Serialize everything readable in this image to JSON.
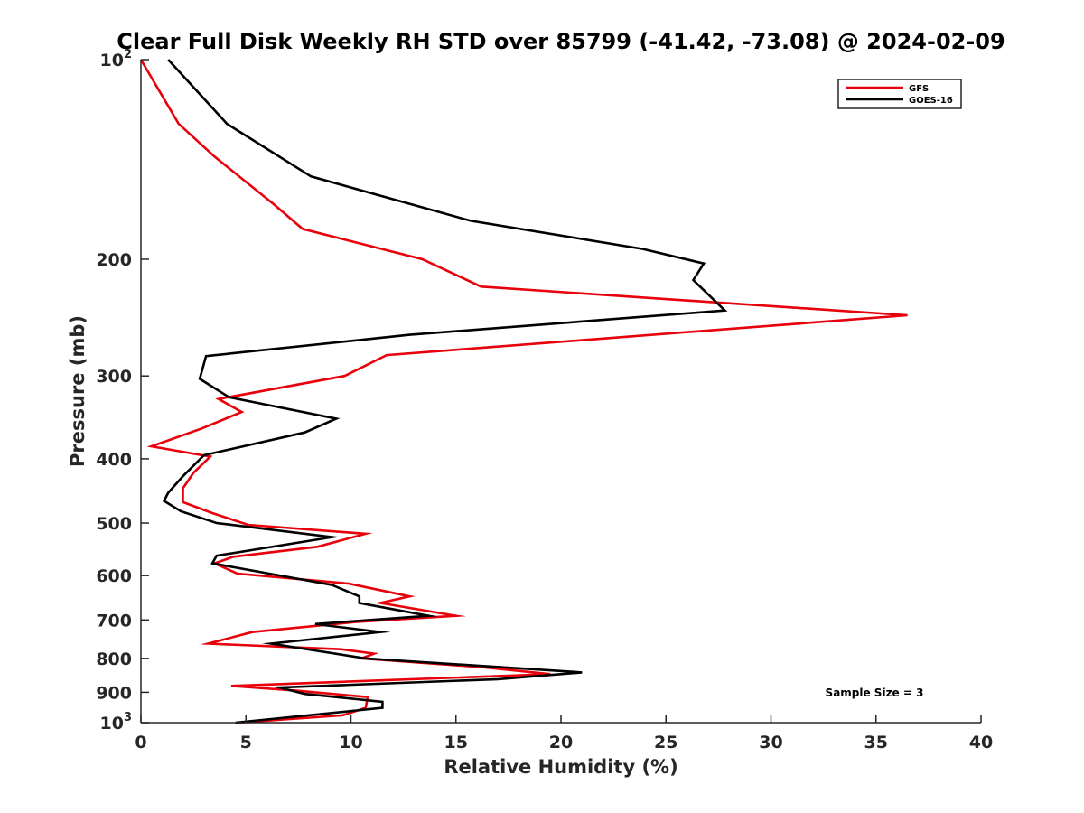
{
  "chart_data": {
    "type": "line",
    "title": "Clear Full Disk Weekly RH STD over 85799 (-41.42, -73.08) @ 2024-02-09",
    "xlabel": "Relative Humidity (%)",
    "ylabel": "Pressure (mb)",
    "xlim": [
      0,
      40
    ],
    "ylim": [
      100,
      1000
    ],
    "y_scale": "log",
    "y_reversed": true,
    "grid": false,
    "x_ticks": [
      0,
      5,
      10,
      15,
      20,
      25,
      30,
      35,
      40
    ],
    "x_tick_labels": [
      "0",
      "5",
      "10",
      "15",
      "20",
      "25",
      "30",
      "35",
      "40"
    ],
    "y_ticks": [
      100,
      200,
      300,
      400,
      500,
      600,
      700,
      800,
      900,
      1000
    ],
    "y_tick_labels": [
      {
        "base": "10",
        "sup": "2"
      },
      {
        "base": "200",
        "sup": ""
      },
      {
        "base": "300",
        "sup": ""
      },
      {
        "base": "400",
        "sup": ""
      },
      {
        "base": "500",
        "sup": ""
      },
      {
        "base": "600",
        "sup": ""
      },
      {
        "base": "700",
        "sup": ""
      },
      {
        "base": "800",
        "sup": ""
      },
      {
        "base": "900",
        "sup": ""
      },
      {
        "base": "10",
        "sup": "3"
      }
    ],
    "legend_position": "top-right",
    "annotation": "Sample Size = 3",
    "series": [
      {
        "name": "GFS",
        "color": "#e8000b",
        "points": [
          [
            0.0,
            100
          ],
          [
            1.8,
            125
          ],
          [
            3.5,
            140
          ],
          [
            6.3,
            165
          ],
          [
            7.7,
            180
          ],
          [
            13.4,
            200
          ],
          [
            16.2,
            220
          ],
          [
            36.5,
            243
          ],
          [
            11.7,
            279
          ],
          [
            9.7,
            300
          ],
          [
            3.7,
            325
          ],
          [
            4.8,
            340
          ],
          [
            2.9,
            360
          ],
          [
            0.5,
            383
          ],
          [
            3.3,
            397
          ],
          [
            2.5,
            420
          ],
          [
            2.0,
            443
          ],
          [
            2.0,
            465
          ],
          [
            3.4,
            483
          ],
          [
            5.1,
            503
          ],
          [
            10.7,
            519
          ],
          [
            8.4,
            543
          ],
          [
            4.4,
            562
          ],
          [
            3.5,
            575
          ],
          [
            4.6,
            596
          ],
          [
            9.9,
            617
          ],
          [
            12.8,
            645
          ],
          [
            11.4,
            660
          ],
          [
            15.0,
            690
          ],
          [
            10.2,
            705
          ],
          [
            5.3,
            730
          ],
          [
            3.2,
            760
          ],
          [
            9.5,
            775
          ],
          [
            11.1,
            787
          ],
          [
            10.5,
            800
          ],
          [
            16.3,
            825
          ],
          [
            19.5,
            845
          ],
          [
            4.3,
            880
          ],
          [
            7.4,
            895
          ],
          [
            10.8,
            915
          ],
          [
            10.7,
            950
          ],
          [
            9.6,
            975
          ],
          [
            4.7,
            1000
          ]
        ]
      },
      {
        "name": "GOES-16",
        "color": "#000000",
        "points": [
          [
            1.3,
            100
          ],
          [
            4.1,
            125
          ],
          [
            8.1,
            150
          ],
          [
            15.7,
            175
          ],
          [
            23.9,
            193
          ],
          [
            26.8,
            203
          ],
          [
            26.3,
            215
          ],
          [
            27.8,
            239
          ],
          [
            12.8,
            260
          ],
          [
            3.1,
            280
          ],
          [
            2.8,
            303
          ],
          [
            4.2,
            323
          ],
          [
            9.3,
            348
          ],
          [
            7.8,
            365
          ],
          [
            3.0,
            395
          ],
          [
            2.0,
            425
          ],
          [
            1.3,
            450
          ],
          [
            1.1,
            463
          ],
          [
            1.9,
            480
          ],
          [
            3.6,
            500
          ],
          [
            9.1,
            525
          ],
          [
            3.6,
            560
          ],
          [
            3.4,
            575
          ],
          [
            9.1,
            620
          ],
          [
            10.4,
            645
          ],
          [
            10.4,
            660
          ],
          [
            13.7,
            690
          ],
          [
            8.3,
            710
          ],
          [
            11.4,
            730
          ],
          [
            6.2,
            760
          ],
          [
            10.7,
            800
          ],
          [
            21.0,
            840
          ],
          [
            17.0,
            860
          ],
          [
            6.6,
            885
          ],
          [
            7.8,
            905
          ],
          [
            11.5,
            930
          ],
          [
            11.5,
            950
          ],
          [
            4.5,
            1000
          ]
        ]
      }
    ]
  }
}
